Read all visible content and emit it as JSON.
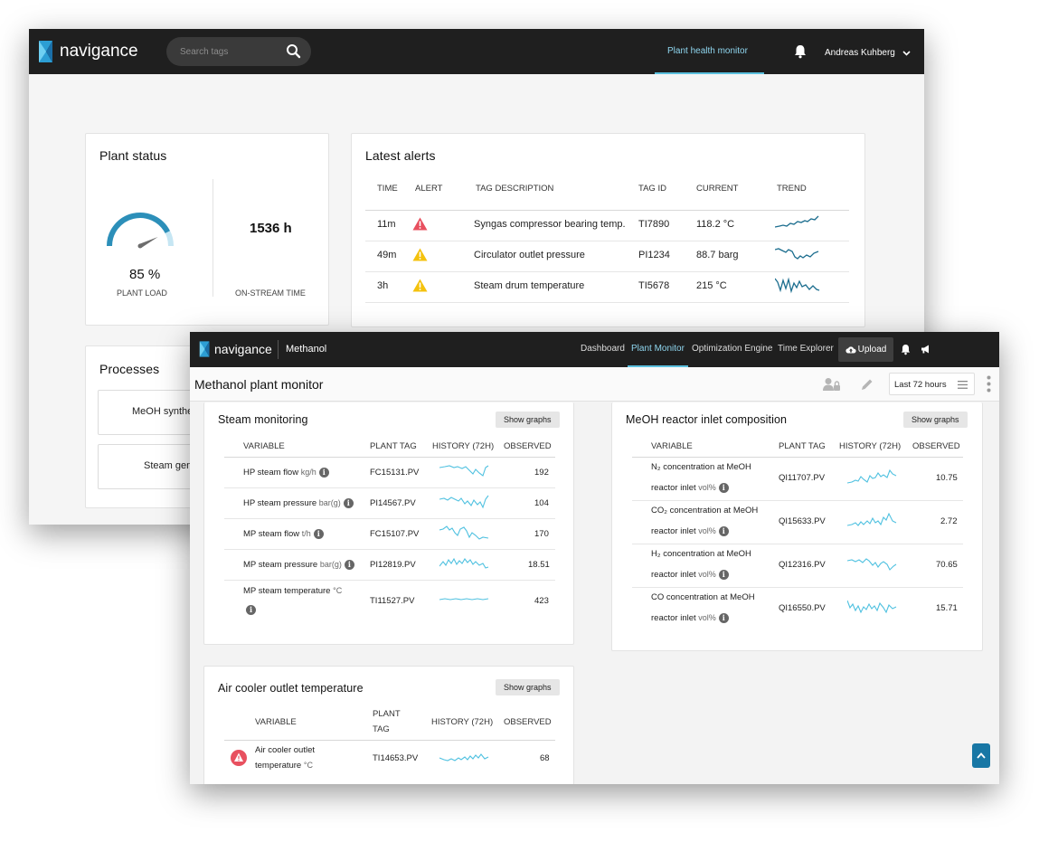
{
  "back": {
    "brand": "navigance",
    "search_placeholder": "Search tags",
    "nav_active": "Plant health monitor",
    "user_name": "Andreas Kuhberg",
    "plant_status": {
      "title": "Plant status",
      "load_value": "85 %",
      "load_fraction": 0.85,
      "load_label": "PLANT LOAD",
      "onstream_value": "1536 h",
      "onstream_label": "ON-STREAM TIME"
    },
    "alerts": {
      "title": "Latest alerts",
      "headers": [
        "TIME",
        "ALERT",
        "TAG DESCRIPTION",
        "TAG ID",
        "CURRENT",
        "TREND"
      ],
      "rows": [
        {
          "time": "11m",
          "level": "critical",
          "desc": "Syngas compressor bearing temp.",
          "tag": "TI7890",
          "current": "118.2 °C"
        },
        {
          "time": "49m",
          "level": "warning",
          "desc": "Circulator outlet pressure",
          "tag": "PI1234",
          "current": "88.7 barg"
        },
        {
          "time": "3h",
          "level": "warning",
          "desc": "Steam drum temperature",
          "tag": "TI5678",
          "current": "215 °C"
        }
      ]
    },
    "processes": {
      "title": "Processes",
      "items": [
        "MeOH synthe",
        "Steam gene"
      ]
    }
  },
  "front": {
    "brand": "navigance",
    "plant": "Methanol",
    "nav": [
      "Dashboard",
      "Plant Monitor",
      "Optimization Engine",
      "Time Explorer"
    ],
    "nav_active_index": 1,
    "upload_label": "Upload",
    "page_title": "Methanol plant monitor",
    "time_range": "Last 72 hours",
    "show_graphs": "Show graphs",
    "steam": {
      "title": "Steam monitoring",
      "headers": [
        "VARIABLE",
        "PLANT TAG",
        "HISTORY (72H)",
        "OBSERVED"
      ],
      "rows": [
        {
          "name": "HP steam flow",
          "unit": "kg/h",
          "tag": "FC15131.PV",
          "value": "192"
        },
        {
          "name": "HP steam pressure",
          "unit": "bar(g)",
          "tag": "PI14567.PV",
          "value": "104"
        },
        {
          "name": "MP steam flow",
          "unit": "t/h",
          "tag": "FC15107.PV",
          "value": "170"
        },
        {
          "name": "MP steam pressure",
          "unit": "bar(g)",
          "tag": "PI12819.PV",
          "value": "18.51"
        },
        {
          "name": "MP steam temperature",
          "unit": "°C",
          "tag": "TI11527.PV",
          "value": "423"
        }
      ]
    },
    "meoh": {
      "title": "MeOH reactor inlet composition",
      "headers": [
        "VARIABLE",
        "PLANT TAG",
        "HISTORY (72H)",
        "OBSERVED"
      ],
      "rows": [
        {
          "name": "N₂ concentration at MeOH",
          "name2": "reactor inlet",
          "unit": "vol%",
          "tag": "QI11707.PV",
          "value": "10.75"
        },
        {
          "name": "CO₂ concentration at MeOH",
          "name2": "reactor inlet",
          "unit": "vol%",
          "tag": "QI15633.PV",
          "value": "2.72"
        },
        {
          "name": "H₂ concentration at MeOH",
          "name2": "reactor inlet",
          "unit": "vol%",
          "tag": "QI12316.PV",
          "value": "70.65"
        },
        {
          "name": "CO concentration at MeOH",
          "name2": "reactor inlet",
          "unit": "vol%",
          "tag": "QI16550.PV",
          "value": "15.71"
        }
      ]
    },
    "air": {
      "title": "Air cooler outlet temperature",
      "headers": [
        "VARIABLE",
        "PLANT",
        "TAG",
        "HISTORY (72H)",
        "OBSERVED"
      ],
      "row": {
        "name": "Air cooler outlet",
        "name2": "temperature",
        "unit": "°C",
        "tag": "TI14653.PV",
        "value": "68"
      }
    }
  },
  "colors": {
    "topbar": "#1f1f1f",
    "accent": "#5bc0de",
    "spark_dark": "#1b6d8e",
    "spark_light": "#4fc1e0",
    "critical": "#e8505f",
    "warning": "#f4c20d"
  }
}
